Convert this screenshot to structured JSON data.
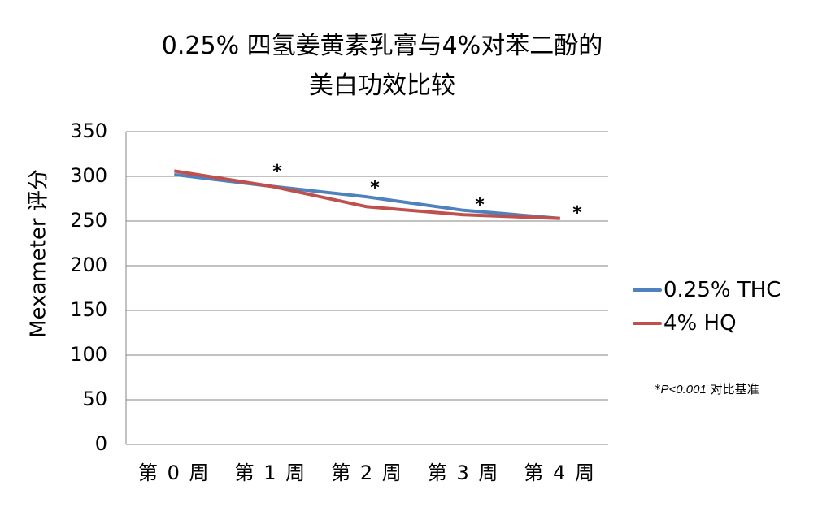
{
  "title": {
    "line1": "0.25% 四氢姜黄素乳膏与4%对苯二酚的",
    "line2": "美白功效比较"
  },
  "y_axis": {
    "label": "Mexameter 评分",
    "ticks": [
      "350",
      "300",
      "250",
      "200",
      "150",
      "100",
      "50",
      "0"
    ]
  },
  "x_axis": {
    "ticks": [
      "第 0 周",
      "第 1 周",
      "第 2 周",
      "第 3 周",
      "第 4 周"
    ]
  },
  "legend": {
    "items": [
      {
        "label": "0.25% THC",
        "color": "#4F81BD"
      },
      {
        "label": "4% HQ",
        "color": "#C0504D"
      }
    ]
  },
  "annotations": {
    "significance_marker": "*",
    "note_prefix": "*",
    "note_italic": "P<0.001",
    "note_text": " 对比基准"
  },
  "chart_data": {
    "type": "line",
    "title": "0.25% 四氢姜黄素乳膏与4%对苯二酚的美白功效比较",
    "xlabel": "",
    "ylabel": "Mexameter 评分",
    "categories": [
      "第 0 周",
      "第 1 周",
      "第 2 周",
      "第 3 周",
      "第 4 周"
    ],
    "series": [
      {
        "name": "0.25% THC",
        "color": "#4F81BD",
        "values": [
          302,
          289,
          277,
          262,
          253
        ]
      },
      {
        "name": "4% HQ",
        "color": "#C0504D",
        "values": [
          306,
          289,
          266,
          257,
          253
        ]
      }
    ],
    "ylim": [
      0,
      350
    ],
    "yticks": [
      0,
      50,
      100,
      150,
      200,
      250,
      300,
      350
    ],
    "grid": true,
    "legend_position": "right",
    "annotations": [
      {
        "text": "*",
        "category": "第 1 周"
      },
      {
        "text": "*",
        "category": "第 2 周"
      },
      {
        "text": "*",
        "category": "第 3 周"
      },
      {
        "text": "*",
        "category": "第 4 周"
      },
      {
        "text": "*P<0.001 对比基准",
        "position": "right-bottom"
      }
    ]
  }
}
